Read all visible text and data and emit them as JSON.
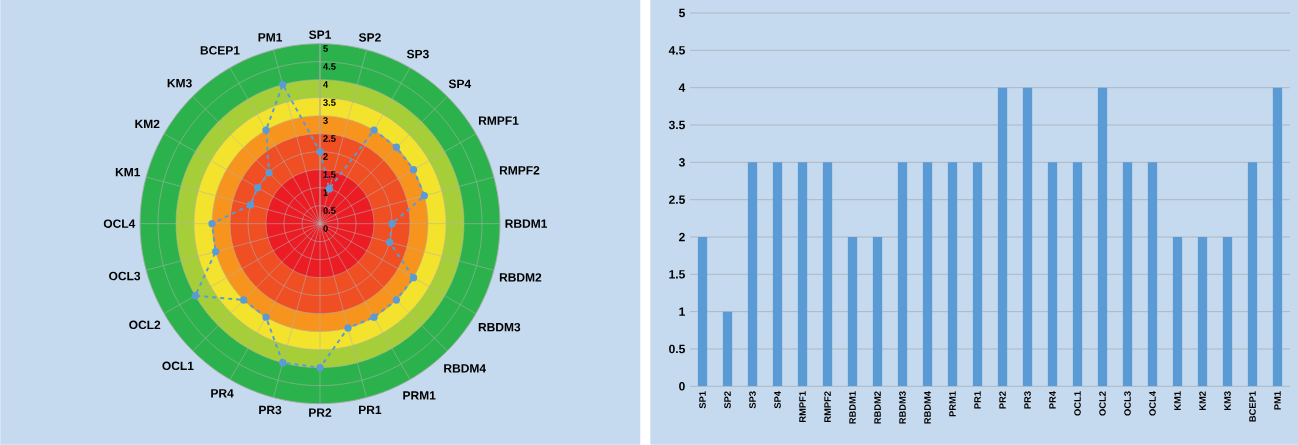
{
  "chart_data": [
    {
      "type": "radar",
      "categories": [
        "SP1",
        "SP2",
        "SP3",
        "SP4",
        "RMPF1",
        "RMPF2",
        "RBDM1",
        "RBDM2",
        "RBDM3",
        "RBDM4",
        "PRM1",
        "PR1",
        "PR2",
        "PR3",
        "PR4",
        "OCL1",
        "OCL2",
        "OCL3",
        "OCL4",
        "KM1",
        "KM2",
        "KM3",
        "BCEP1",
        "PM1"
      ],
      "values": [
        2,
        1,
        3,
        3,
        3,
        3,
        2,
        2,
        3,
        3,
        3,
        3,
        4,
        4,
        3,
        3,
        4,
        3,
        3,
        2,
        2,
        2,
        3,
        4
      ],
      "color": "#5b9bd5",
      "marker": "circle",
      "line_style": "dashed",
      "ylim": [
        0,
        5
      ],
      "yticks": [
        0,
        0.5,
        1,
        1.5,
        2,
        2.5,
        3,
        3.5,
        4,
        4.5,
        5
      ],
      "grid": true
    },
    {
      "type": "bar",
      "categories": [
        "SP1",
        "SP2",
        "SP3",
        "SP4",
        "RMPF1",
        "RMPF2",
        "RBDM1",
        "RBDM2",
        "RBDM3",
        "RBDM4",
        "PRM1",
        "PR1",
        "PR2",
        "PR3",
        "PR4",
        "OCL1",
        "OCL2",
        "OCL3",
        "OCL4",
        "KM1",
        "KM2",
        "KM3",
        "BCEP1",
        "PM1"
      ],
      "values": [
        2,
        1,
        3,
        3,
        3,
        3,
        2,
        2,
        3,
        3,
        3,
        3,
        4,
        4,
        3,
        3,
        4,
        3,
        3,
        2,
        2,
        2,
        3,
        4
      ],
      "color": "#5b9bd5",
      "ylim": [
        0,
        5
      ],
      "yticks": [
        0,
        0.5,
        1,
        1.5,
        2,
        2.5,
        3,
        3.5,
        4,
        4.5,
        5
      ],
      "grid": "y"
    }
  ]
}
